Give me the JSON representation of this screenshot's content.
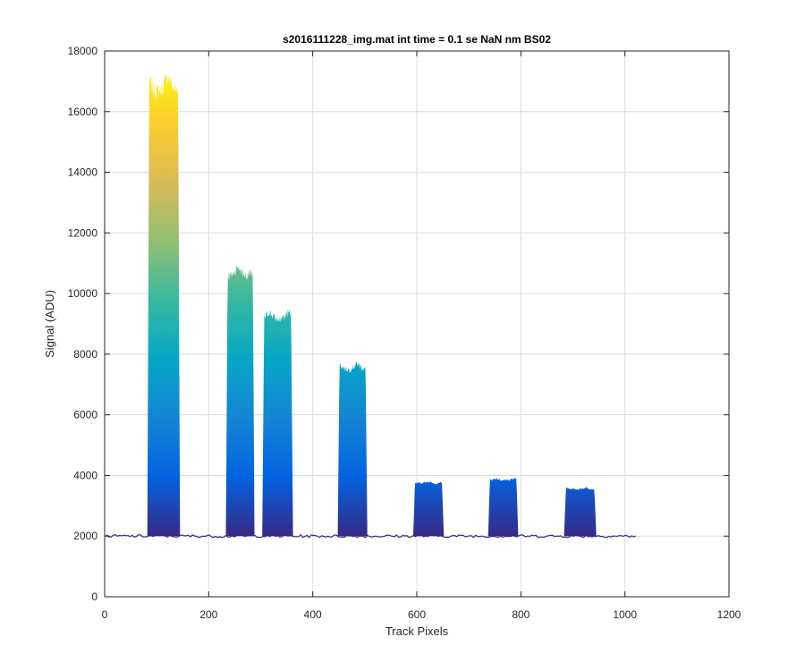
{
  "chart_data": {
    "type": "area",
    "title": "s2016111228_img.mat int time = 0.1 se  NaN nm BS02",
    "xlabel": "Track Pixels",
    "ylabel": "Signal (ADU)",
    "xlim": [
      0,
      1200
    ],
    "ylim": [
      0,
      18000
    ],
    "xticks": [
      0,
      200,
      400,
      600,
      800,
      1000,
      1200
    ],
    "yticks": [
      0,
      2000,
      4000,
      6000,
      8000,
      10000,
      12000,
      14000,
      16000,
      18000
    ],
    "grid": true,
    "colormap": [
      "#352a87",
      "#0363e1",
      "#1485d4",
      "#06a7c6",
      "#38b99e",
      "#92bf73",
      "#d9ba56",
      "#fcce2e",
      "#f9fb0e"
    ],
    "baseline": 2000,
    "x_range": [
      1,
      1024
    ],
    "peaks": [
      {
        "x_start": 82,
        "x_end": 145,
        "top": 17200,
        "shoulder": 5800
      },
      {
        "x_start": 233,
        "x_end": 288,
        "top": 10900,
        "shoulder": 4600
      },
      {
        "x_start": 303,
        "x_end": 362,
        "top": 9400,
        "shoulder": 5500
      },
      {
        "x_start": 448,
        "x_end": 505,
        "top": 7700,
        "shoulder": 4200
      },
      {
        "x_start": 593,
        "x_end": 652,
        "top": 3800,
        "shoulder": 3100
      },
      {
        "x_start": 737,
        "x_end": 795,
        "top": 3900,
        "shoulder": 3200
      },
      {
        "x_start": 883,
        "x_end": 945,
        "top": 3600,
        "shoulder": 3000
      }
    ]
  }
}
